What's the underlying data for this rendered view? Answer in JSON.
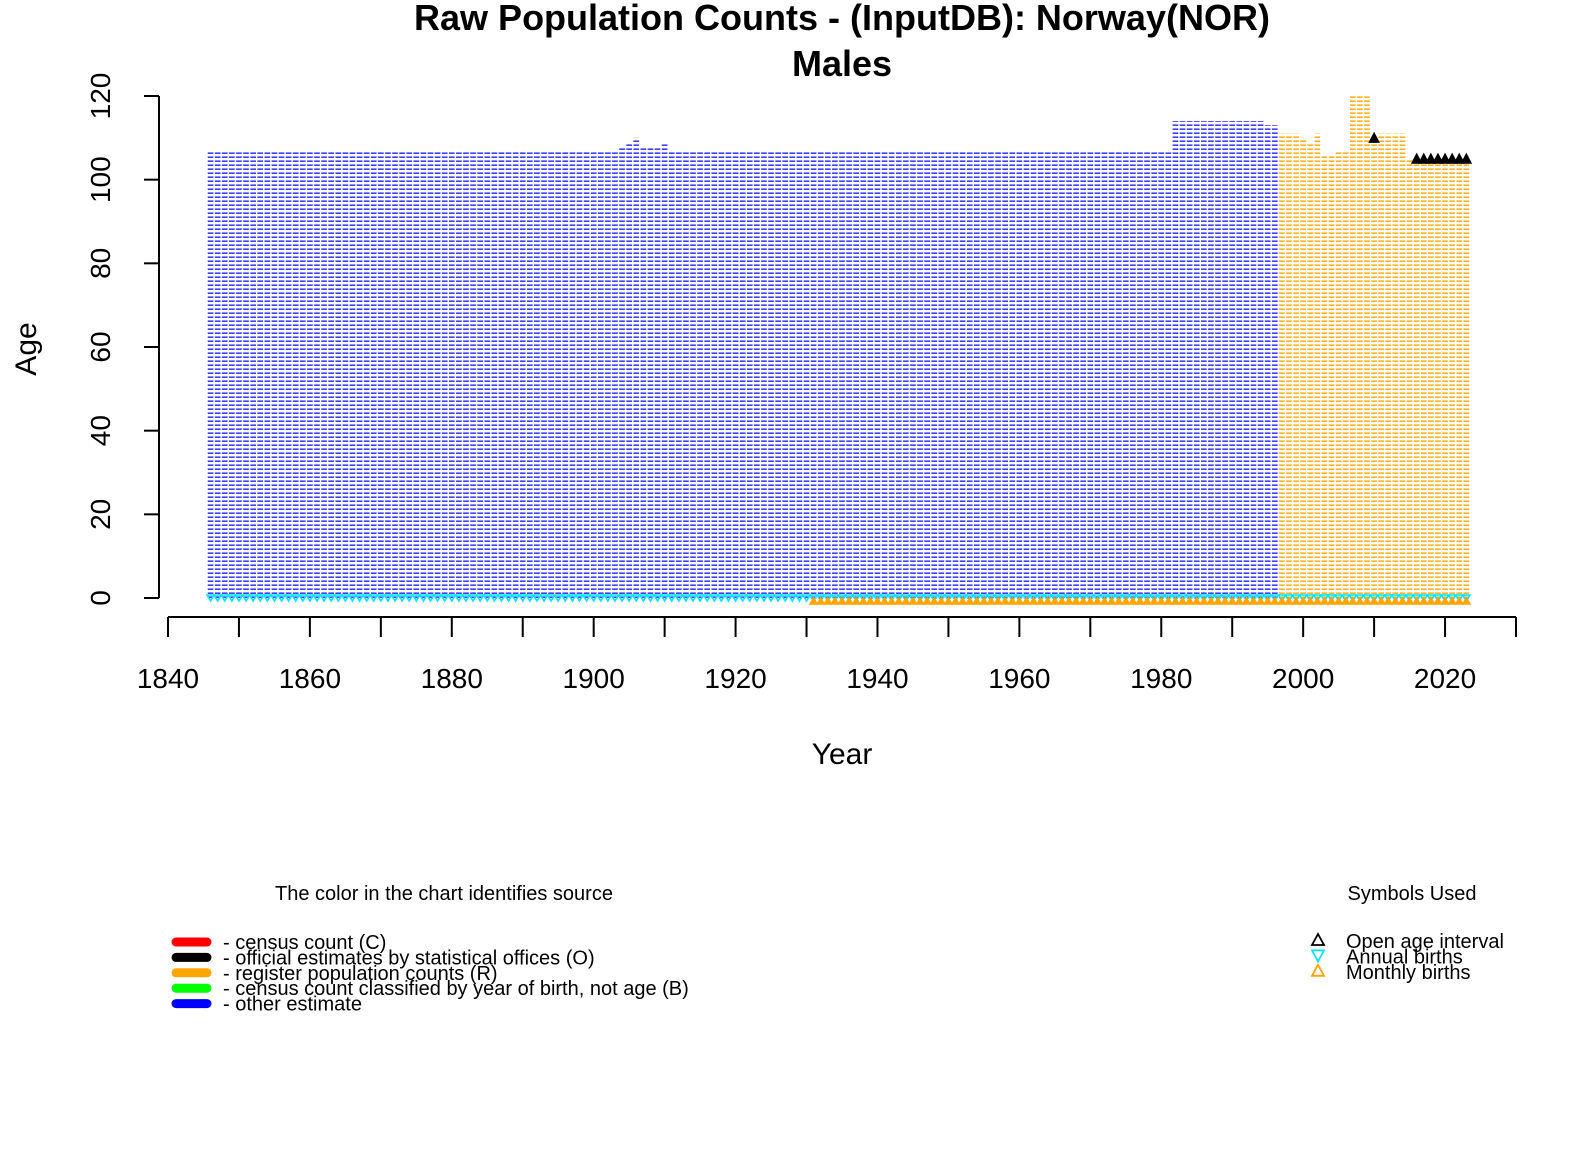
{
  "chart_data": {
    "type": "scatter",
    "title": "Raw Population Counts - (InputDB): Norway(NOR)",
    "subtitle": "Males",
    "xlabel": "Year",
    "ylabel": "Age",
    "xlim": [
      1840,
      2030
    ],
    "ylim": [
      0,
      120
    ],
    "x_ticks": [
      1840,
      1850,
      1860,
      1870,
      1880,
      1890,
      1900,
      1910,
      1920,
      1930,
      1940,
      1950,
      1960,
      1970,
      1980,
      1990,
      2000,
      2010,
      2020,
      2030
    ],
    "x_tick_labels": [
      "1840",
      "1860",
      "1880",
      "1900",
      "1920",
      "1940",
      "1960",
      "1980",
      "2000",
      "2020"
    ],
    "x_tick_label_values": [
      1840,
      1860,
      1880,
      1900,
      1920,
      1940,
      1960,
      1980,
      2000,
      2020
    ],
    "y_ticks": [
      0,
      20,
      40,
      60,
      80,
      100,
      120
    ],
    "y_tick_labels": [
      "0",
      "20",
      "40",
      "60",
      "80",
      "100",
      "120"
    ],
    "grid": false,
    "series": [
      {
        "source": "other estimate",
        "color": "#0000FF",
        "segments": [
          {
            "from": 1846,
            "to": 1903,
            "max_age": 107
          },
          {
            "from": 1904,
            "to": 1904,
            "max_age": 108
          },
          {
            "from": 1905,
            "to": 1905,
            "max_age": 109
          },
          {
            "from": 1906,
            "to": 1906,
            "max_age": 110
          },
          {
            "from": 1907,
            "to": 1909,
            "max_age": 108
          },
          {
            "from": 1910,
            "to": 1910,
            "max_age": 109
          },
          {
            "from": 1911,
            "to": 1981,
            "max_age": 107
          },
          {
            "from": 1982,
            "to": 1994,
            "max_age": 114
          },
          {
            "from": 1995,
            "to": 1996,
            "max_age": 113
          }
        ]
      },
      {
        "source": "register population counts (R)",
        "color": "#FFA500",
        "segments": [
          {
            "from": 1997,
            "to": 1999,
            "max_age": 111
          },
          {
            "from": 2000,
            "to": 2000,
            "max_age": 110
          },
          {
            "from": 2001,
            "to": 2001,
            "max_age": 109
          },
          {
            "from": 2002,
            "to": 2002,
            "max_age": 111
          },
          {
            "from": 2003,
            "to": 2004,
            "max_age": 106
          },
          {
            "from": 2005,
            "to": 2006,
            "max_age": 107
          },
          {
            "from": 2007,
            "to": 2009,
            "max_age": 120
          },
          {
            "from": 2010,
            "to": 2010,
            "max_age": 110
          },
          {
            "from": 2011,
            "to": 2014,
            "max_age": 111
          },
          {
            "from": 2015,
            "to": 2023,
            "max_age": 105
          }
        ]
      }
    ],
    "open_age_interval": [
      {
        "year": 2010,
        "age": 110
      },
      {
        "year": 2016,
        "age": 105
      },
      {
        "year": 2017,
        "age": 105
      },
      {
        "year": 2018,
        "age": 105
      },
      {
        "year": 2019,
        "age": 105
      },
      {
        "year": 2020,
        "age": 105
      },
      {
        "year": 2021,
        "age": 105
      },
      {
        "year": 2022,
        "age": 105
      },
      {
        "year": 2023,
        "age": 105
      }
    ],
    "annual_births": {
      "from": 1846,
      "to": 2023,
      "color": "#00E5FF"
    },
    "monthly_births": {
      "from": 1931,
      "to": 2023,
      "color": "#FFA500"
    },
    "legend_sources": {
      "title": "The color in the chart identifies source",
      "placement": "bottom-left",
      "items": [
        {
          "label": "- census count (C)",
          "color": "#FF0000"
        },
        {
          "label": "- official estimates by statistical offices (O)",
          "color": "#000000"
        },
        {
          "label": "- register population counts (R)",
          "color": "#FFA500"
        },
        {
          "label": "- census count classified by year of birth, not age (B)",
          "color": "#00FF00"
        },
        {
          "label": "- other estimate",
          "color": "#0000FF"
        }
      ]
    },
    "legend_symbols": {
      "title": "Symbols Used",
      "placement": "bottom-right",
      "items": [
        {
          "label": "Open age interval",
          "symbol": "triangle-up",
          "color": "#000000"
        },
        {
          "label": "Annual births",
          "symbol": "triangle-down",
          "color": "#00E5FF"
        },
        {
          "label": "Monthly births",
          "symbol": "triangle-up",
          "color": "#FFA500"
        }
      ]
    }
  }
}
